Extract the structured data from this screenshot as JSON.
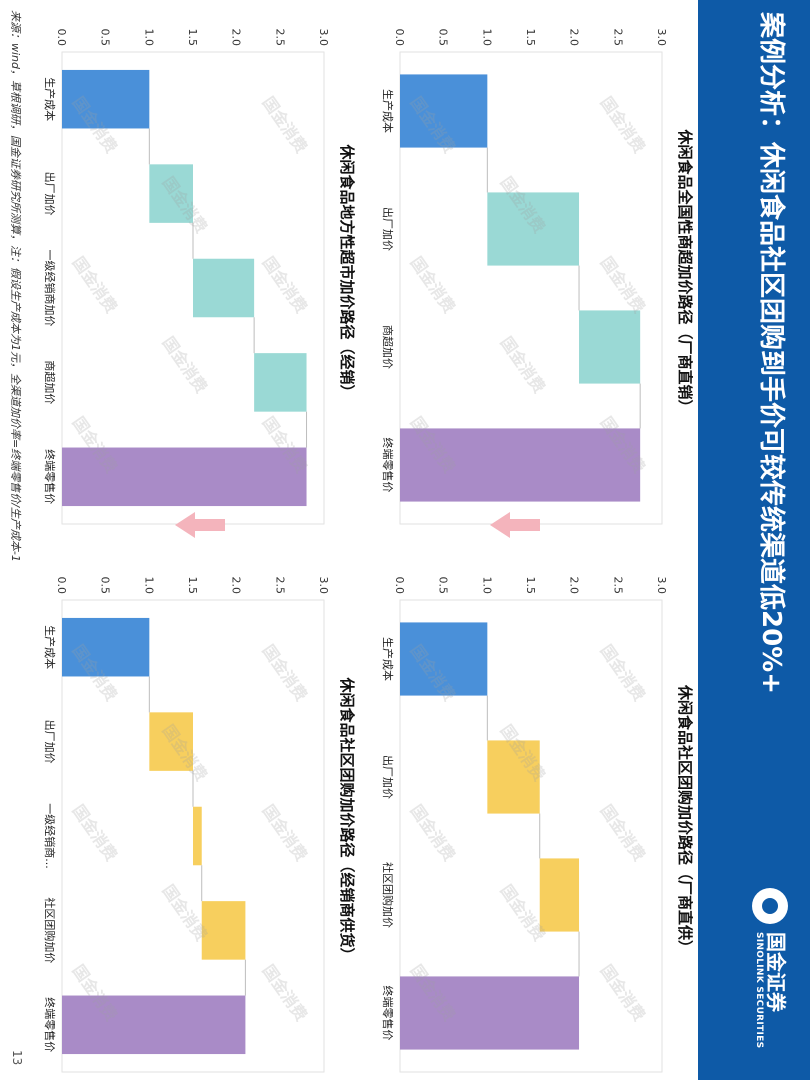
{
  "title": "案例分析：休闲食品社区团购到手价可较传统渠道低20%+",
  "logo": {
    "cn": "国金证券",
    "en": "SINOLINK SECURITIES"
  },
  "watermark": "国金消费",
  "source": "来源：wind，草根调研，国金证券研究所测算，注：假设生产成本为1元，全渠道加价率=终端零售价/生产成本-1",
  "page_number": "13",
  "colors": {
    "start": "#4a90d9",
    "traditional": "#9ad9d5",
    "groupbuy": "#f7cf5e",
    "end": "#a98bc7",
    "header": "#0e5aa7"
  },
  "chart_data": [
    {
      "type": "bar",
      "subtype": "waterfall",
      "title": "休闲食品全国性商超加价路径（厂商直销）",
      "categories": [
        "生产成本",
        "出厂加价",
        "商超加价",
        "终端零售价"
      ],
      "bars": [
        {
          "kind": "start",
          "base": 0,
          "top": 1.0
        },
        {
          "kind": "step",
          "base": 1.0,
          "top": 2.05
        },
        {
          "kind": "step",
          "base": 2.05,
          "top": 2.75
        },
        {
          "kind": "end",
          "base": 0,
          "top": 2.75
        }
      ],
      "ylim": [
        0,
        3.0
      ],
      "yticks": [
        "0.0",
        "0.5",
        "1.0",
        "1.5",
        "2.0",
        "2.5",
        "3.0"
      ],
      "step_color": "#9ad9d5"
    },
    {
      "type": "bar",
      "subtype": "waterfall",
      "title": "休闲食品社区团购加价路径（厂商直供）",
      "categories": [
        "生产成本",
        "出厂加价",
        "社区团购加价",
        "终端零售价"
      ],
      "bars": [
        {
          "kind": "start",
          "base": 0,
          "top": 1.0
        },
        {
          "kind": "step",
          "base": 1.0,
          "top": 1.6
        },
        {
          "kind": "step",
          "base": 1.6,
          "top": 2.05
        },
        {
          "kind": "end",
          "base": 0,
          "top": 2.05
        }
      ],
      "ylim": [
        0,
        3.0
      ],
      "yticks": [
        "0.0",
        "0.5",
        "1.0",
        "1.5",
        "2.0",
        "2.5",
        "3.0"
      ],
      "step_color": "#f7cf5e"
    },
    {
      "type": "bar",
      "subtype": "waterfall",
      "title": "休闲食品地方性超市加价路径（经销）",
      "categories": [
        "生产成本",
        "出厂加价",
        "一级经销商加价",
        "商超加价",
        "终端零售价"
      ],
      "bars": [
        {
          "kind": "start",
          "base": 0,
          "top": 1.0
        },
        {
          "kind": "step",
          "base": 1.0,
          "top": 1.5
        },
        {
          "kind": "step",
          "base": 1.5,
          "top": 2.2
        },
        {
          "kind": "step",
          "base": 2.2,
          "top": 2.8
        },
        {
          "kind": "end",
          "base": 0,
          "top": 2.8
        }
      ],
      "ylim": [
        0,
        3.0
      ],
      "yticks": [
        "0.0",
        "0.5",
        "1.0",
        "1.5",
        "2.0",
        "2.5",
        "3.0"
      ],
      "step_color": "#9ad9d5"
    },
    {
      "type": "bar",
      "subtype": "waterfall",
      "title": "休闲食品社区团购加价路径（经销商供货）",
      "categories": [
        "生产成本",
        "出厂加价",
        "一级经销商...",
        "社区团购加价",
        "终端零售价"
      ],
      "bars": [
        {
          "kind": "start",
          "base": 0,
          "top": 1.0
        },
        {
          "kind": "step",
          "base": 1.0,
          "top": 1.5
        },
        {
          "kind": "step",
          "base": 1.5,
          "top": 1.6
        },
        {
          "kind": "step",
          "base": 1.6,
          "top": 2.1
        },
        {
          "kind": "end",
          "base": 0,
          "top": 2.1
        }
      ],
      "ylim": [
        0,
        3.0
      ],
      "yticks": [
        "0.0",
        "0.5",
        "1.0",
        "1.5",
        "2.0",
        "2.5",
        "3.0"
      ],
      "step_color": "#f7cf5e"
    }
  ]
}
